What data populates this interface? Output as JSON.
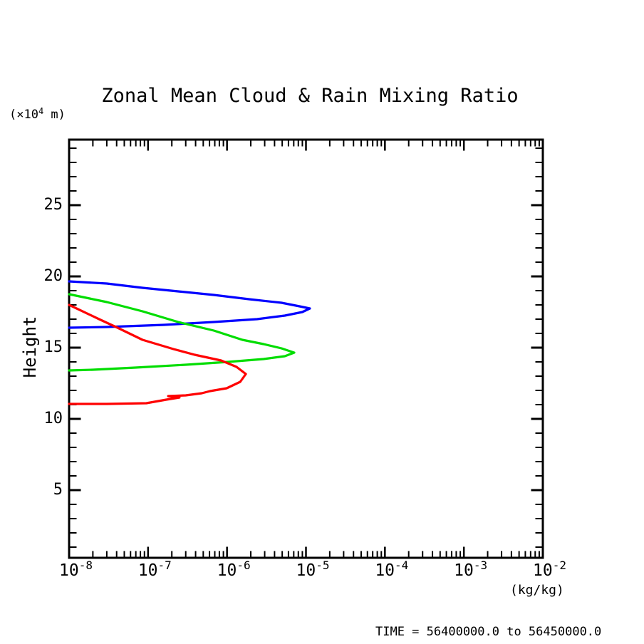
{
  "chart": {
    "title": "Zonal Mean Cloud & Rain Mixing Ratio",
    "y_unit_pre": "(×10",
    "y_unit_exp": "4",
    "y_unit_post": " m)",
    "ylabel": "Height",
    "x_unit": "(kg/kg)",
    "time_label": "TIME = 56400000.0 to 56450000.0",
    "axis_color": "#000000",
    "background_color": "#ffffff"
  },
  "chart_data": {
    "type": "line",
    "title": "Zonal Mean Cloud & Rain Mixing Ratio",
    "xlabel": "(kg/kg)",
    "ylabel": "Height (×10^4 m)",
    "x_scale": "log10",
    "xlim": [
      1e-08,
      0.01
    ],
    "ylim": [
      0.25,
      29.6
    ],
    "x_major_ticks_exp": [
      -8,
      -7,
      -6,
      -5,
      -4,
      -3,
      -2
    ],
    "x_tick_base": "10",
    "y_major_ticks": [
      5,
      10,
      15,
      20,
      25
    ],
    "y_minor_tick_step": 1,
    "grid": false,
    "legend": "none",
    "ticks": "inward, mirrored on all four sides",
    "series": [
      {
        "name": "blue",
        "color": "#0000ff",
        "points_value_height": [
          [
            1e-08,
            19.65
          ],
          [
            3e-08,
            19.5
          ],
          [
            8.5e-08,
            19.2
          ],
          [
            2.4e-07,
            18.95
          ],
          [
            6.8e-07,
            18.7
          ],
          [
            1.9e-06,
            18.4
          ],
          [
            4.9e-06,
            18.15
          ],
          [
            8.3e-06,
            17.9
          ],
          [
            1.12e-05,
            17.75
          ],
          [
            9e-06,
            17.5
          ],
          [
            5.4e-06,
            17.25
          ],
          [
            2.4e-06,
            17.0
          ],
          [
            6.8e-07,
            16.8
          ],
          [
            1.6e-07,
            16.6
          ],
          [
            3e-08,
            16.45
          ],
          [
            1e-08,
            16.4
          ]
        ]
      },
      {
        "name": "green",
        "color": "#00dd00",
        "points_value_height": [
          [
            1e-08,
            18.75
          ],
          [
            3e-08,
            18.2
          ],
          [
            8.5e-08,
            17.55
          ],
          [
            2.4e-07,
            16.8
          ],
          [
            6.8e-07,
            16.2
          ],
          [
            1.56e-06,
            15.55
          ],
          [
            2.9e-06,
            15.25
          ],
          [
            4.9e-06,
            14.95
          ],
          [
            7.1e-06,
            14.65
          ],
          [
            5.4e-06,
            14.4
          ],
          [
            2.9e-06,
            14.2
          ],
          [
            1.03e-06,
            14.0
          ],
          [
            3e-07,
            13.8
          ],
          [
            6.9e-08,
            13.6
          ],
          [
            2e-08,
            13.45
          ],
          [
            1e-08,
            13.4
          ]
        ]
      },
      {
        "name": "red",
        "color": "#ff0000",
        "points_value_height": [
          [
            1e-08,
            18.0
          ],
          [
            2.4e-08,
            17.0
          ],
          [
            4.1e-08,
            16.4
          ],
          [
            8.5e-08,
            15.55
          ],
          [
            2.1e-07,
            14.9
          ],
          [
            3.9e-07,
            14.5
          ],
          [
            8.4e-07,
            14.1
          ],
          [
            1.32e-06,
            13.65
          ],
          [
            1.73e-06,
            13.15
          ],
          [
            1.47e-06,
            12.6
          ],
          [
            9.9e-07,
            12.15
          ],
          [
            6.1e-07,
            11.95
          ],
          [
            4.8e-07,
            11.8
          ],
          [
            3e-07,
            11.65
          ],
          [
            1.8e-07,
            11.6
          ],
          [
            2.5e-07,
            11.5
          ],
          [
            1.7e-07,
            11.35
          ],
          [
            9.5e-08,
            11.1
          ],
          [
            3e-08,
            11.05
          ],
          [
            1e-08,
            11.05
          ]
        ]
      }
    ]
  }
}
